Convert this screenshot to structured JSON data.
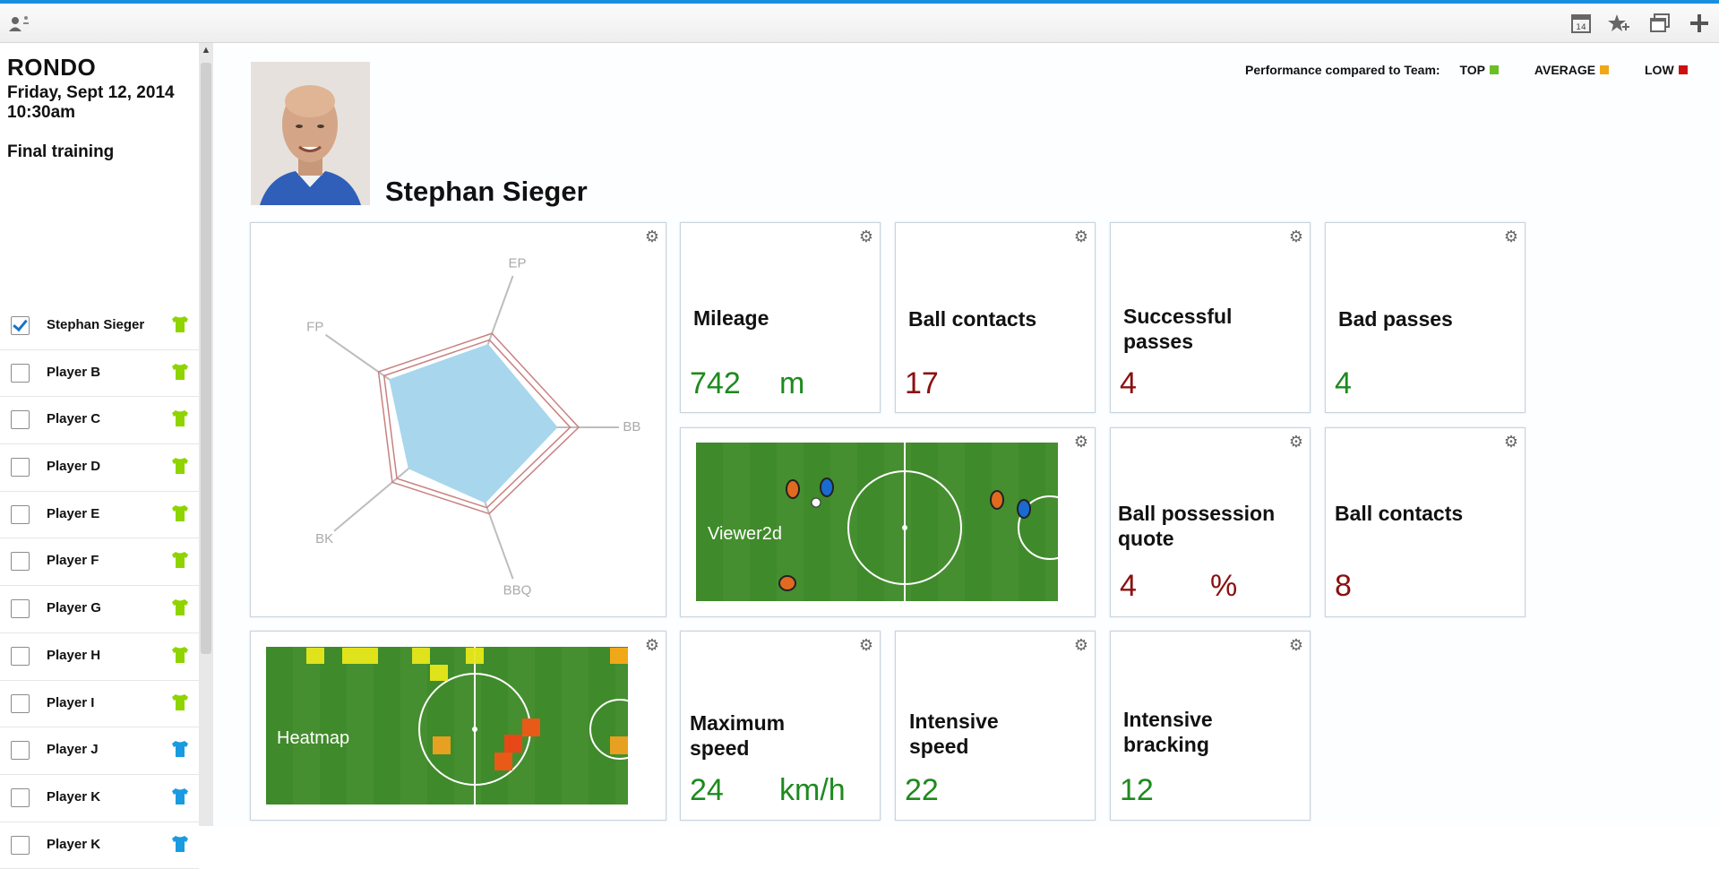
{
  "toolbar": {
    "left_icon": "user-settings-icon",
    "right_icons": [
      "calendar-icon",
      "star-add-icon",
      "window-copy-icon",
      "plus-icon"
    ],
    "calendar_day": "14"
  },
  "sidebar": {
    "title": "RONDO",
    "date": "Friday, Sept 12, 2014 10:30am",
    "session": "Final training",
    "players": [
      {
        "name": "Stephan Sieger",
        "checked": true,
        "shirt_color": "#8fd400"
      },
      {
        "name": "Player B",
        "checked": false,
        "shirt_color": "#8fd400"
      },
      {
        "name": "Player C",
        "checked": false,
        "shirt_color": "#8fd400"
      },
      {
        "name": "Player D",
        "checked": false,
        "shirt_color": "#8fd400"
      },
      {
        "name": "Player E",
        "checked": false,
        "shirt_color": "#8fd400"
      },
      {
        "name": "Player F",
        "checked": false,
        "shirt_color": "#8fd400"
      },
      {
        "name": "Player G",
        "checked": false,
        "shirt_color": "#8fd400"
      },
      {
        "name": "Player H",
        "checked": false,
        "shirt_color": "#8fd400"
      },
      {
        "name": "Player I",
        "checked": false,
        "shirt_color": "#8fd400"
      },
      {
        "name": "Player J",
        "checked": false,
        "shirt_color": "#1a9be0"
      },
      {
        "name": "Player K",
        "checked": false,
        "shirt_color": "#1a9be0"
      },
      {
        "name": "Player K",
        "checked": false,
        "shirt_color": "#1a9be0"
      }
    ]
  },
  "header": {
    "player_name": "Stephan Sieger",
    "legend": {
      "title": "Performance compared to Team:",
      "top": "TOP",
      "top_color": "#6cbf22",
      "average": "AVERAGE",
      "average_color": "#f0a818",
      "low": "LOW",
      "low_color": "#cc1010"
    }
  },
  "radar": {
    "axes": [
      "EP",
      "BB",
      "BBQ",
      "BK",
      "FP"
    ],
    "player_values": [
      0.55,
      0.62,
      0.5,
      0.4,
      0.52
    ],
    "team_values": [
      0.62,
      0.75,
      0.57,
      0.53,
      0.6
    ],
    "fill_color": "#a8d6ec",
    "team_color": "#c98080"
  },
  "kpis": {
    "mileage": {
      "label": "Mileage",
      "value": "742",
      "unit": "m"
    },
    "ball_contacts": {
      "label": "Ball contacts",
      "value": "17"
    },
    "successful_passes": {
      "label": "Successful passes",
      "value": "4"
    },
    "bad_passes": {
      "label": "Bad passes",
      "value": "4"
    },
    "ball_possession": {
      "label": "Ball possession quote",
      "value": "4",
      "unit": "%"
    },
    "ball_contacts_2": {
      "label": "Ball contacts",
      "value": "8"
    },
    "max_speed": {
      "label": "Maximum speed",
      "value": "24",
      "unit": "km/h"
    },
    "intensive_speed": {
      "label": "Intensive speed",
      "value": "22"
    },
    "intensive_bracking": {
      "label": "Intensive bracking",
      "value": "12"
    }
  },
  "viewer": {
    "label": "Viewer2d"
  },
  "heatmap": {
    "label": "Heatmap"
  },
  "colors": {
    "good": "#1e8a1e",
    "bad": "#8b1010",
    "accent": "#1a8fe0"
  }
}
